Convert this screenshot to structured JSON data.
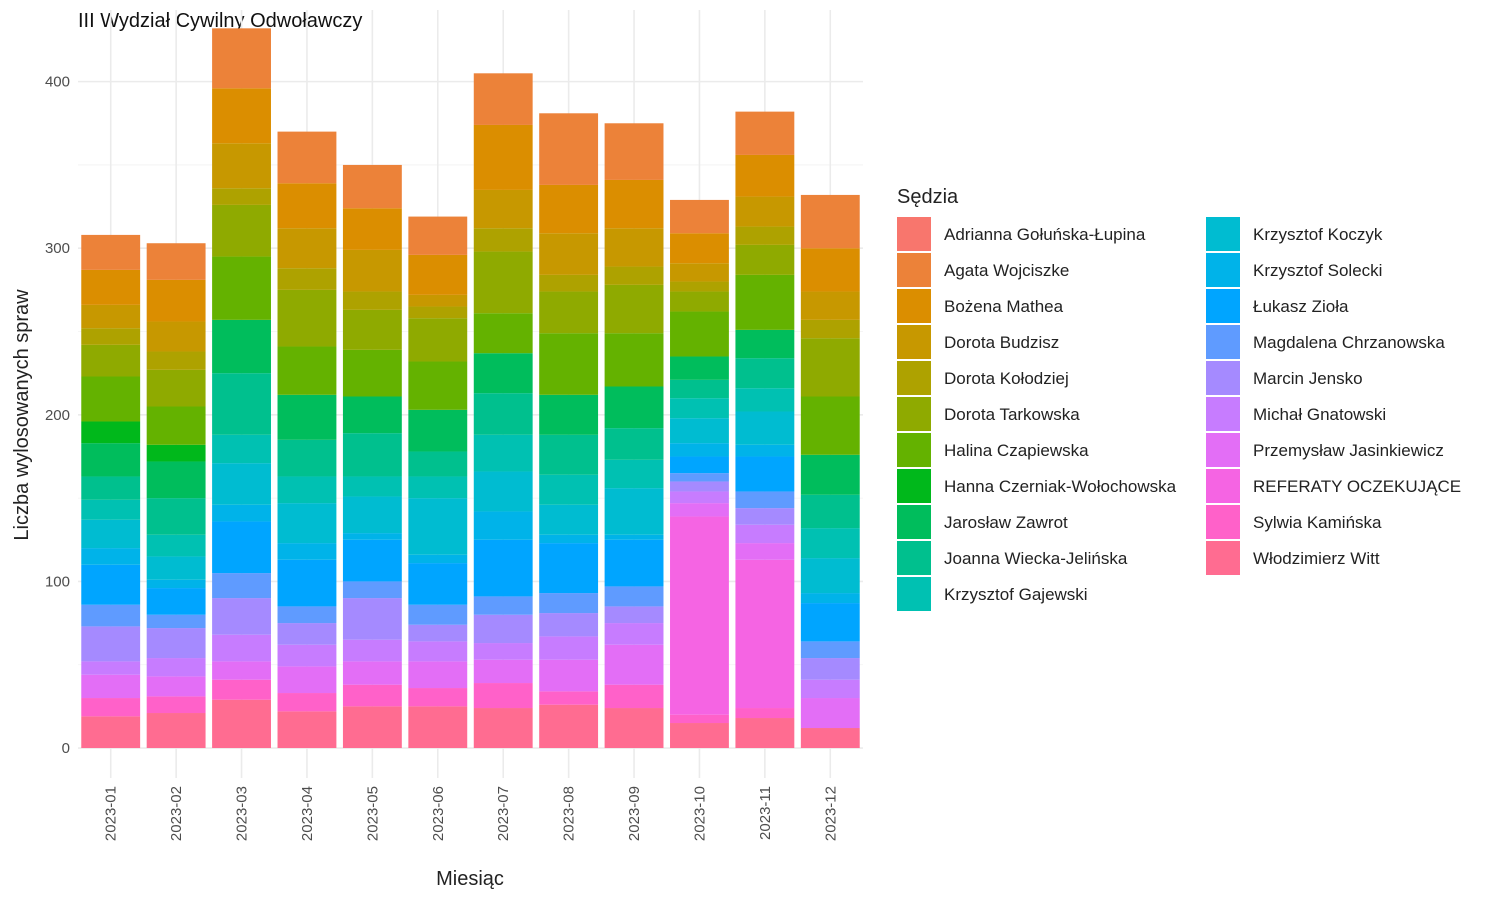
{
  "chart_data": {
    "type": "bar",
    "stacked": true,
    "title": "III Wydział Cywilny Odwoławczy",
    "xlabel": "Miesiąc",
    "ylabel": "Liczba wylosowanych spraw",
    "ylim": [
      -18,
      443
    ],
    "yticks": [
      0,
      100,
      200,
      300,
      400
    ],
    "legend_title": "Sędzia",
    "legend_position": "right",
    "grid": true,
    "categories": [
      "2023-01",
      "2023-02",
      "2023-03",
      "2023-04",
      "2023-05",
      "2023-06",
      "2023-07",
      "2023-08",
      "2023-09",
      "2023-10",
      "2023-11",
      "2023-12"
    ],
    "series": [
      {
        "name": "Adrianna Gołuńska-Łupina",
        "color": "#F8766D",
        "values": [
          0,
          0,
          0,
          0,
          0,
          0,
          0,
          0,
          0,
          0,
          0,
          0
        ]
      },
      {
        "name": "Agata Wojciszke",
        "color": "#EC8239",
        "values": [
          21,
          22,
          36,
          31,
          26,
          23,
          31,
          43,
          34,
          20,
          26,
          32
        ]
      },
      {
        "name": "Bożena Mathea",
        "color": "#DB8E00",
        "values": [
          21,
          25,
          33,
          27,
          25,
          24,
          39,
          29,
          29,
          18,
          25,
          26
        ]
      },
      {
        "name": "Dorota Budzisz",
        "color": "#C79800",
        "values": [
          14,
          18,
          27,
          24,
          25,
          7,
          23,
          25,
          23,
          11,
          18,
          17
        ]
      },
      {
        "name": "Dorota Kołodziej",
        "color": "#AEA200",
        "values": [
          10,
          11,
          10,
          13,
          11,
          7,
          14,
          10,
          11,
          6,
          11,
          11
        ]
      },
      {
        "name": "Dorota Tarkowska",
        "color": "#8FAA00",
        "values": [
          19,
          22,
          31,
          34,
          24,
          26,
          37,
          25,
          29,
          12,
          18,
          35
        ]
      },
      {
        "name": "Halina Czapiewska",
        "color": "#64B200",
        "values": [
          27,
          23,
          38,
          29,
          28,
          29,
          24,
          37,
          32,
          27,
          33,
          35
        ]
      },
      {
        "name": "Hanna Czerniak-Wołochowska",
        "color": "#00B81B",
        "values": [
          13,
          10,
          0,
          0,
          0,
          0,
          0,
          0,
          0,
          0,
          0,
          0
        ]
      },
      {
        "name": "Jarosław Zawrot",
        "color": "#00BD5C",
        "values": [
          20,
          22,
          32,
          27,
          22,
          25,
          24,
          24,
          25,
          14,
          17,
          24
        ]
      },
      {
        "name": "Joanna Wiecka-Jelińska",
        "color": "#00C08E",
        "values": [
          14,
          22,
          37,
          22,
          26,
          15,
          25,
          24,
          19,
          11,
          18,
          20
        ]
      },
      {
        "name": "Krzysztof Gajewski",
        "color": "#00C1B2",
        "values": [
          12,
          13,
          17,
          16,
          12,
          13,
          22,
          18,
          17,
          12,
          14,
          18
        ]
      },
      {
        "name": "Krzysztof Koczyk",
        "color": "#00BCD1",
        "values": [
          17,
          14,
          25,
          24,
          22,
          34,
          24,
          18,
          28,
          15,
          20,
          21
        ]
      },
      {
        "name": "Krzysztof Solecki",
        "color": "#00B3E9",
        "values": [
          10,
          5,
          10,
          10,
          4,
          5,
          17,
          5,
          3,
          8,
          7,
          6
        ]
      },
      {
        "name": "Łukasz Zioła",
        "color": "#00A5FF",
        "values": [
          24,
          16,
          31,
          28,
          25,
          25,
          34,
          30,
          28,
          10,
          21,
          23
        ]
      },
      {
        "name": "Magdalena Chrzanowska",
        "color": "#5F9BFF",
        "values": [
          13,
          8,
          15,
          10,
          10,
          12,
          11,
          12,
          12,
          5,
          10,
          10
        ]
      },
      {
        "name": "Marcin Jensko",
        "color": "#A58AFF",
        "values": [
          21,
          18,
          22,
          13,
          25,
          10,
          17,
          14,
          10,
          6,
          10,
          13
        ]
      },
      {
        "name": "Michał Gnatowski",
        "color": "#C77CFF",
        "values": [
          8,
          11,
          16,
          13,
          13,
          12,
          10,
          14,
          13,
          7,
          11,
          11
        ]
      },
      {
        "name": "Przemysław Jasinkiewicz",
        "color": "#E36EF6",
        "values": [
          14,
          12,
          11,
          16,
          14,
          16,
          14,
          19,
          24,
          8,
          10,
          18
        ]
      },
      {
        "name": "REFERATY OCZEKUJĄCE",
        "color": "#F564E3",
        "values": [
          0,
          0,
          0,
          0,
          0,
          0,
          0,
          0,
          0,
          119,
          89,
          0
        ]
      },
      {
        "name": "Sylwia Kamińska",
        "color": "#FF61C9",
        "values": [
          11,
          10,
          12,
          11,
          13,
          11,
          15,
          8,
          14,
          5,
          6,
          0
        ]
      },
      {
        "name": "Włodzimierz Witt",
        "color": "#FF6C91",
        "values": [
          19,
          21,
          29,
          22,
          25,
          25,
          24,
          26,
          24,
          15,
          18,
          12
        ]
      }
    ]
  }
}
